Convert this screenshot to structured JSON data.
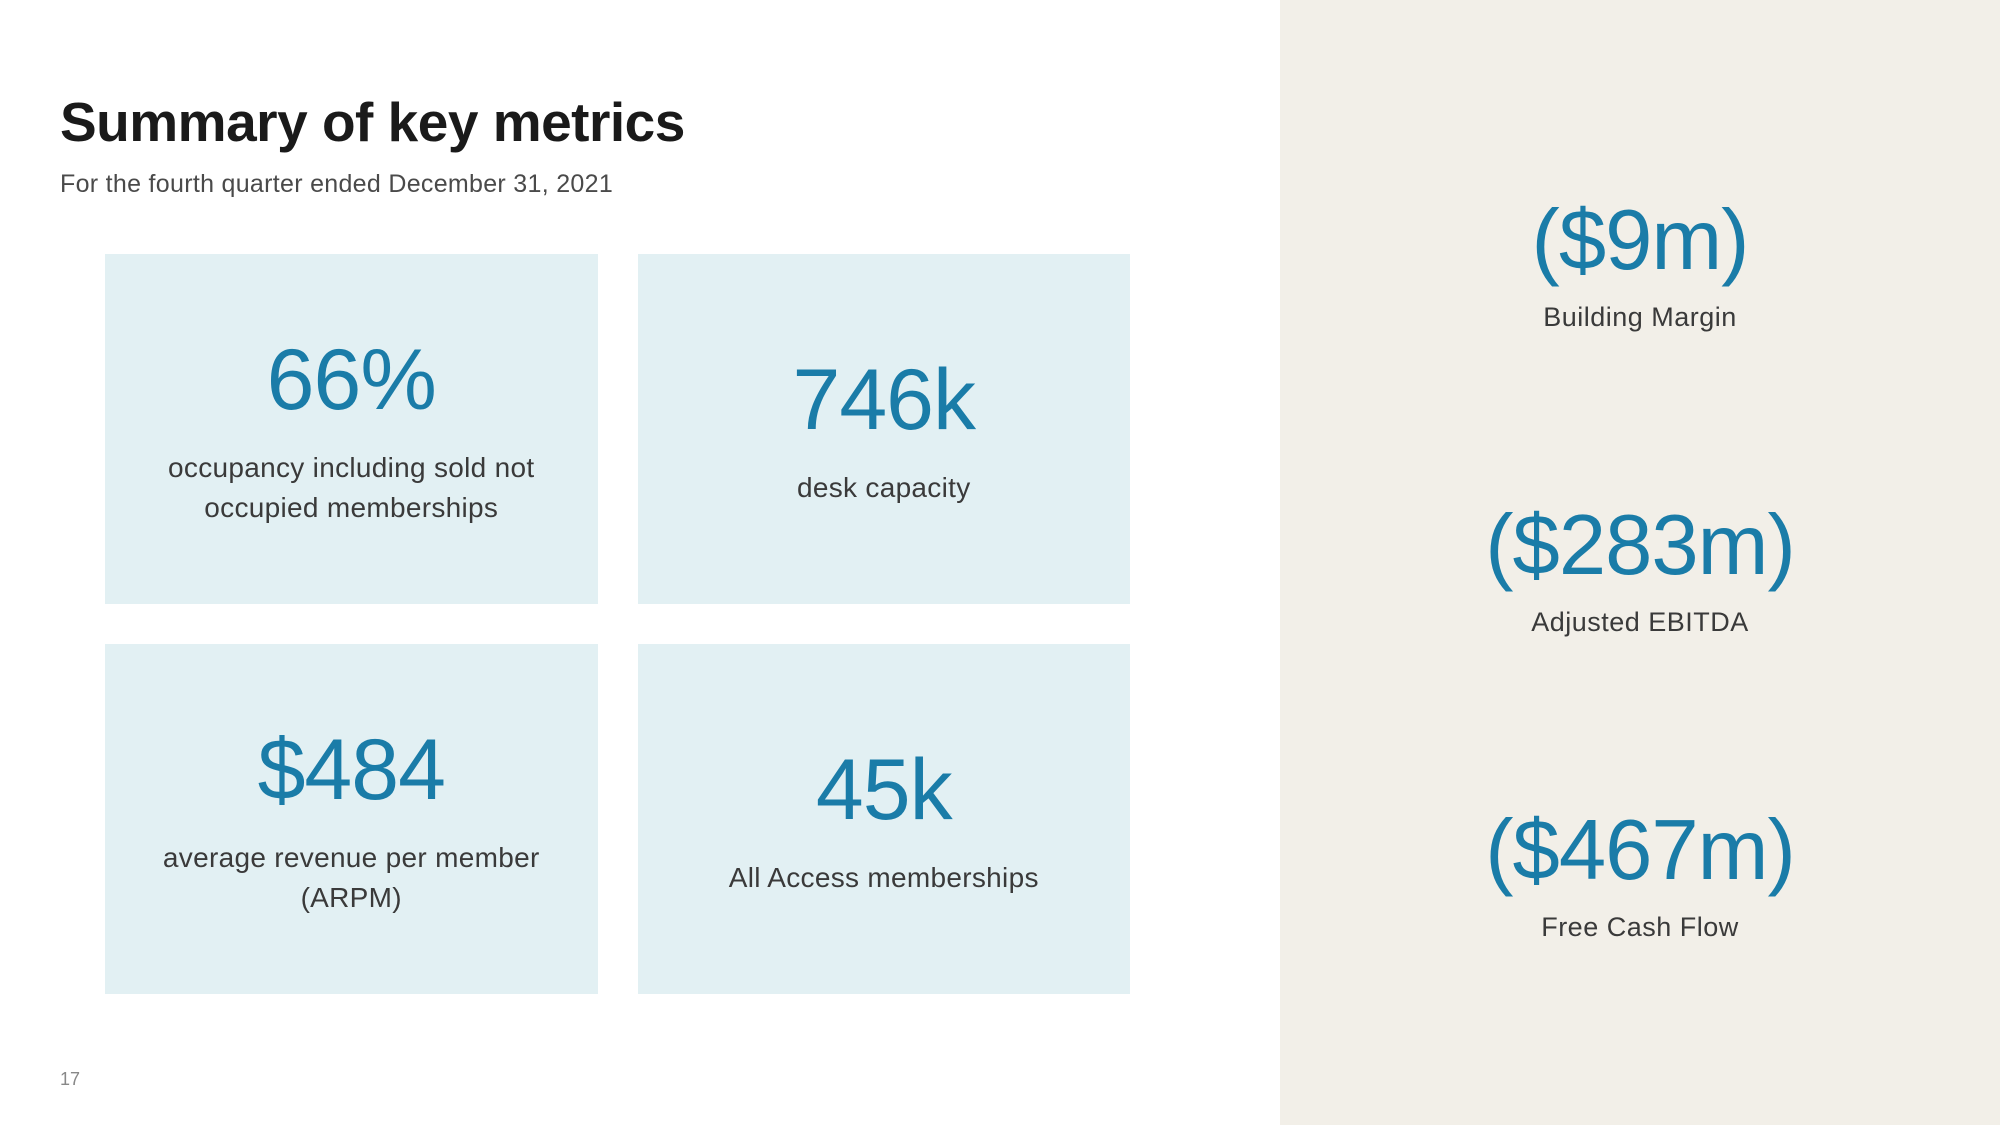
{
  "header": {
    "title": "Summary of key metrics",
    "subtitle": "For the fourth quarter ended December 31, 2021"
  },
  "colors": {
    "card_background": "#e2f0f3",
    "sidebar_background": "#f2efe8",
    "accent_blue": "#1a7ca8",
    "text_dark": "#1a1a1a",
    "text_medium": "#3a3a3a",
    "text_light": "#4a4a4a"
  },
  "metric_cards": [
    {
      "value": "66%",
      "label": "occupancy including sold not occupied memberships"
    },
    {
      "value": "746k",
      "label": "desk capacity"
    },
    {
      "value": "$484",
      "label": "average revenue per member (ARPM)"
    },
    {
      "value": "45k",
      "label": "All Access memberships"
    }
  ],
  "financial_metrics": [
    {
      "value": "($9m)",
      "label": "Building Margin"
    },
    {
      "value": "($283m)",
      "label": "Adjusted EBITDA"
    },
    {
      "value": "($467m)",
      "label": "Free Cash Flow"
    }
  ],
  "page_number": "17"
}
